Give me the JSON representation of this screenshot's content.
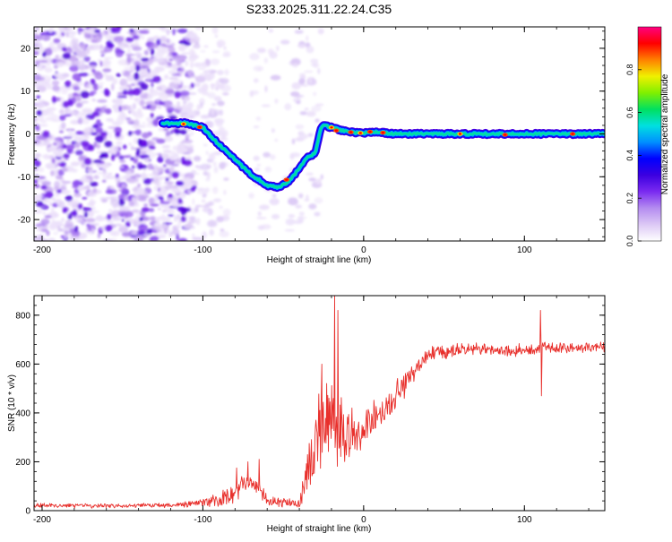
{
  "title": "S233.2025.311.22.24.C35",
  "chart_data": [
    {
      "type": "heatmap",
      "name": "spectrogram",
      "xlabel": "Height of straight line (km)",
      "ylabel": "Frequency (Hz)",
      "xlim": [
        -205,
        150
      ],
      "ylim": [
        -25,
        25
      ],
      "xticks": [
        -200,
        -100,
        0,
        100
      ],
      "yticks": [
        -20,
        -10,
        0,
        10,
        20
      ],
      "colorbar": {
        "label": "Normalized spectral amplitude",
        "range": [
          0,
          1
        ],
        "ticks": [
          0.0,
          0.2,
          0.4,
          0.6,
          0.8
        ],
        "tick_labels": [
          "0.0",
          "0.2",
          "0.4",
          "0.6",
          "0.8"
        ],
        "colors": [
          "#ffffff",
          "#dcc8f5",
          "#b48cf0",
          "#7a2af0",
          "#3b00e0",
          "#0000ff",
          "#0090ff",
          "#00e0e0",
          "#00e060",
          "#80f000",
          "#f0f000",
          "#ff8000",
          "#ff0000",
          "#ff0080"
        ]
      },
      "ridge": {
        "x": [
          -125,
          -110,
          -100,
          -90,
          -80,
          -70,
          -60,
          -52,
          -45,
          -40,
          -35,
          -30,
          -27,
          -25,
          -20,
          -10,
          0,
          10,
          20,
          40,
          60,
          80,
          100,
          120,
          150
        ],
        "y": [
          2.5,
          2.5,
          1.5,
          -2.5,
          -6,
          -9.5,
          -12,
          -12.5,
          -10.5,
          -8,
          -5.5,
          -4.5,
          1,
          2,
          1.5,
          0.5,
          0.2,
          0.4,
          0,
          0,
          0,
          0,
          0,
          0,
          0
        ]
      }
    },
    {
      "type": "line",
      "name": "snr",
      "xlabel": "Height of straight line (km)",
      "ylabel": "SNR (10 * v/v)",
      "xlim": [
        -205,
        150
      ],
      "ylim": [
        0,
        880
      ],
      "xticks": [
        -200,
        -100,
        0,
        100
      ],
      "yticks": [
        0,
        200,
        400,
        600,
        800
      ],
      "color": "#e8302c",
      "anchors": {
        "x": [
          -205,
          -150,
          -120,
          -100,
          -90,
          -80,
          -75,
          -70,
          -65,
          -60,
          -50,
          -40,
          -35,
          -30,
          -25,
          -20,
          -15,
          -10,
          0,
          10,
          20,
          30,
          40,
          60,
          80,
          100,
          110,
          120,
          140,
          150
        ],
        "y": [
          22,
          20,
          22,
          30,
          45,
          60,
          110,
          120,
          80,
          40,
          30,
          30,
          160,
          280,
          360,
          380,
          320,
          300,
          340,
          400,
          470,
          560,
          640,
          660,
          660,
          655,
          670,
          665,
          670,
          672
        ]
      },
      "noise": {
        "x": [
          -205,
          -120,
          -100,
          -80,
          -60,
          -40,
          -35,
          -25,
          -15,
          0,
          20,
          40,
          100,
          150
        ],
        "amp": [
          12,
          10,
          20,
          55,
          35,
          18,
          140,
          200,
          160,
          90,
          70,
          35,
          30,
          28
        ]
      },
      "spikes": [
        {
          "x": -79,
          "y": 175
        },
        {
          "x": -72,
          "y": 200
        },
        {
          "x": -65,
          "y": 210
        },
        {
          "x": -26,
          "y": 600
        },
        {
          "x": -18,
          "y": 880
        },
        {
          "x": -16,
          "y": 820
        },
        {
          "x": 110,
          "y": 820
        },
        {
          "x": 110.6,
          "y": 470
        }
      ]
    }
  ]
}
